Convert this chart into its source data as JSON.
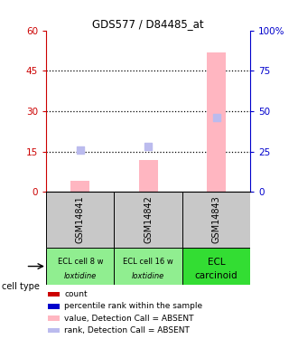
{
  "title": "GDS577 / D84485_at",
  "samples": [
    "GSM14841",
    "GSM14842",
    "GSM14843"
  ],
  "cell_types_line1": [
    "ECL cell 8 w",
    "ECL cell 16 w",
    "ECL"
  ],
  "cell_types_line2": [
    "loxtidine",
    "loxtidine",
    "carcinoid"
  ],
  "cell_type_colors": [
    "#90EE90",
    "#90EE90",
    "#33DD33"
  ],
  "bar_values_absent": [
    4,
    12,
    52
  ],
  "rank_absent": [
    26,
    28,
    46
  ],
  "ylim_left": [
    0,
    60
  ],
  "ylim_right": [
    0,
    100
  ],
  "yticks_left": [
    0,
    15,
    30,
    45,
    60
  ],
  "yticks_right": [
    0,
    25,
    50,
    75,
    100
  ],
  "left_color": "#CC0000",
  "right_color": "#0000CC",
  "sample_bg_color": "#C8C8C8",
  "bar_color_absent": "#FFB6C1",
  "rank_color_absent": "#BBBBEE",
  "legend_items": [
    {
      "color": "#CC0000",
      "label": "count"
    },
    {
      "color": "#0000CC",
      "label": "percentile rank within the sample"
    },
    {
      "color": "#FFB6C1",
      "label": "value, Detection Call = ABSENT"
    },
    {
      "color": "#BBBBEE",
      "label": "rank, Detection Call = ABSENT"
    }
  ],
  "dotted_lines": [
    15,
    30,
    45
  ]
}
